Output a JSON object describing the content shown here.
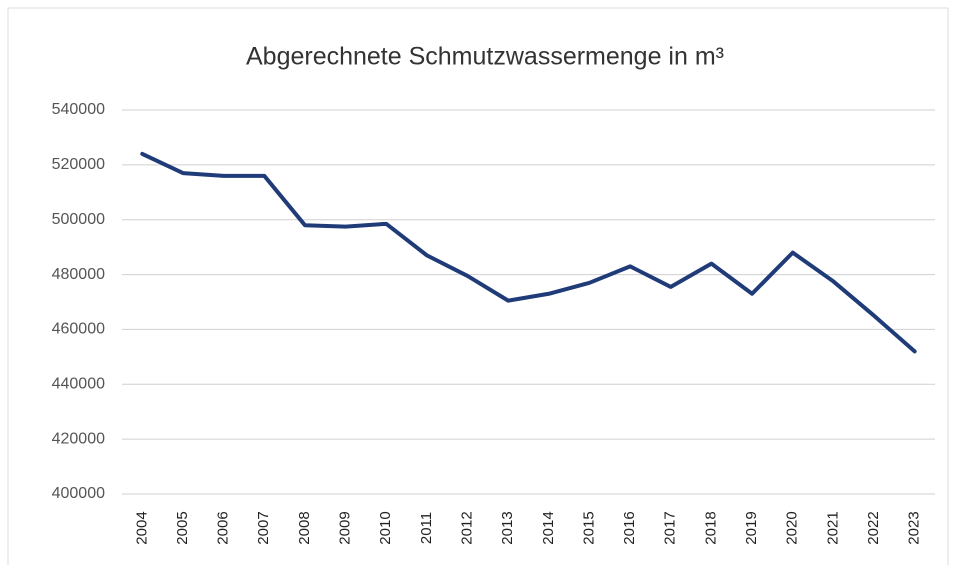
{
  "chart_data": {
    "type": "line",
    "title": "Abgerechnete Schmutzwassermenge  in m³",
    "categories": [
      "2004",
      "2005",
      "2006",
      "2007",
      "2008",
      "2009",
      "2010",
      "2011",
      "2012",
      "2013",
      "2014",
      "2015",
      "2016",
      "2017",
      "2018",
      "2019",
      "2020",
      "2021",
      "2022",
      "2023"
    ],
    "series": [
      {
        "name": "Schmutzwassermenge",
        "color": "#1f3b78",
        "values": [
          524000,
          517000,
          516000,
          516000,
          498000,
          497500,
          498500,
          487000,
          479500,
          470500,
          473000,
          477000,
          483000,
          475500,
          484000,
          473000,
          488000,
          477500,
          465000,
          452000
        ]
      }
    ],
    "ylim": [
      400000,
      540000
    ],
    "yticks": [
      400000,
      420000,
      440000,
      460000,
      480000,
      500000,
      520000,
      540000
    ],
    "grid": true
  }
}
